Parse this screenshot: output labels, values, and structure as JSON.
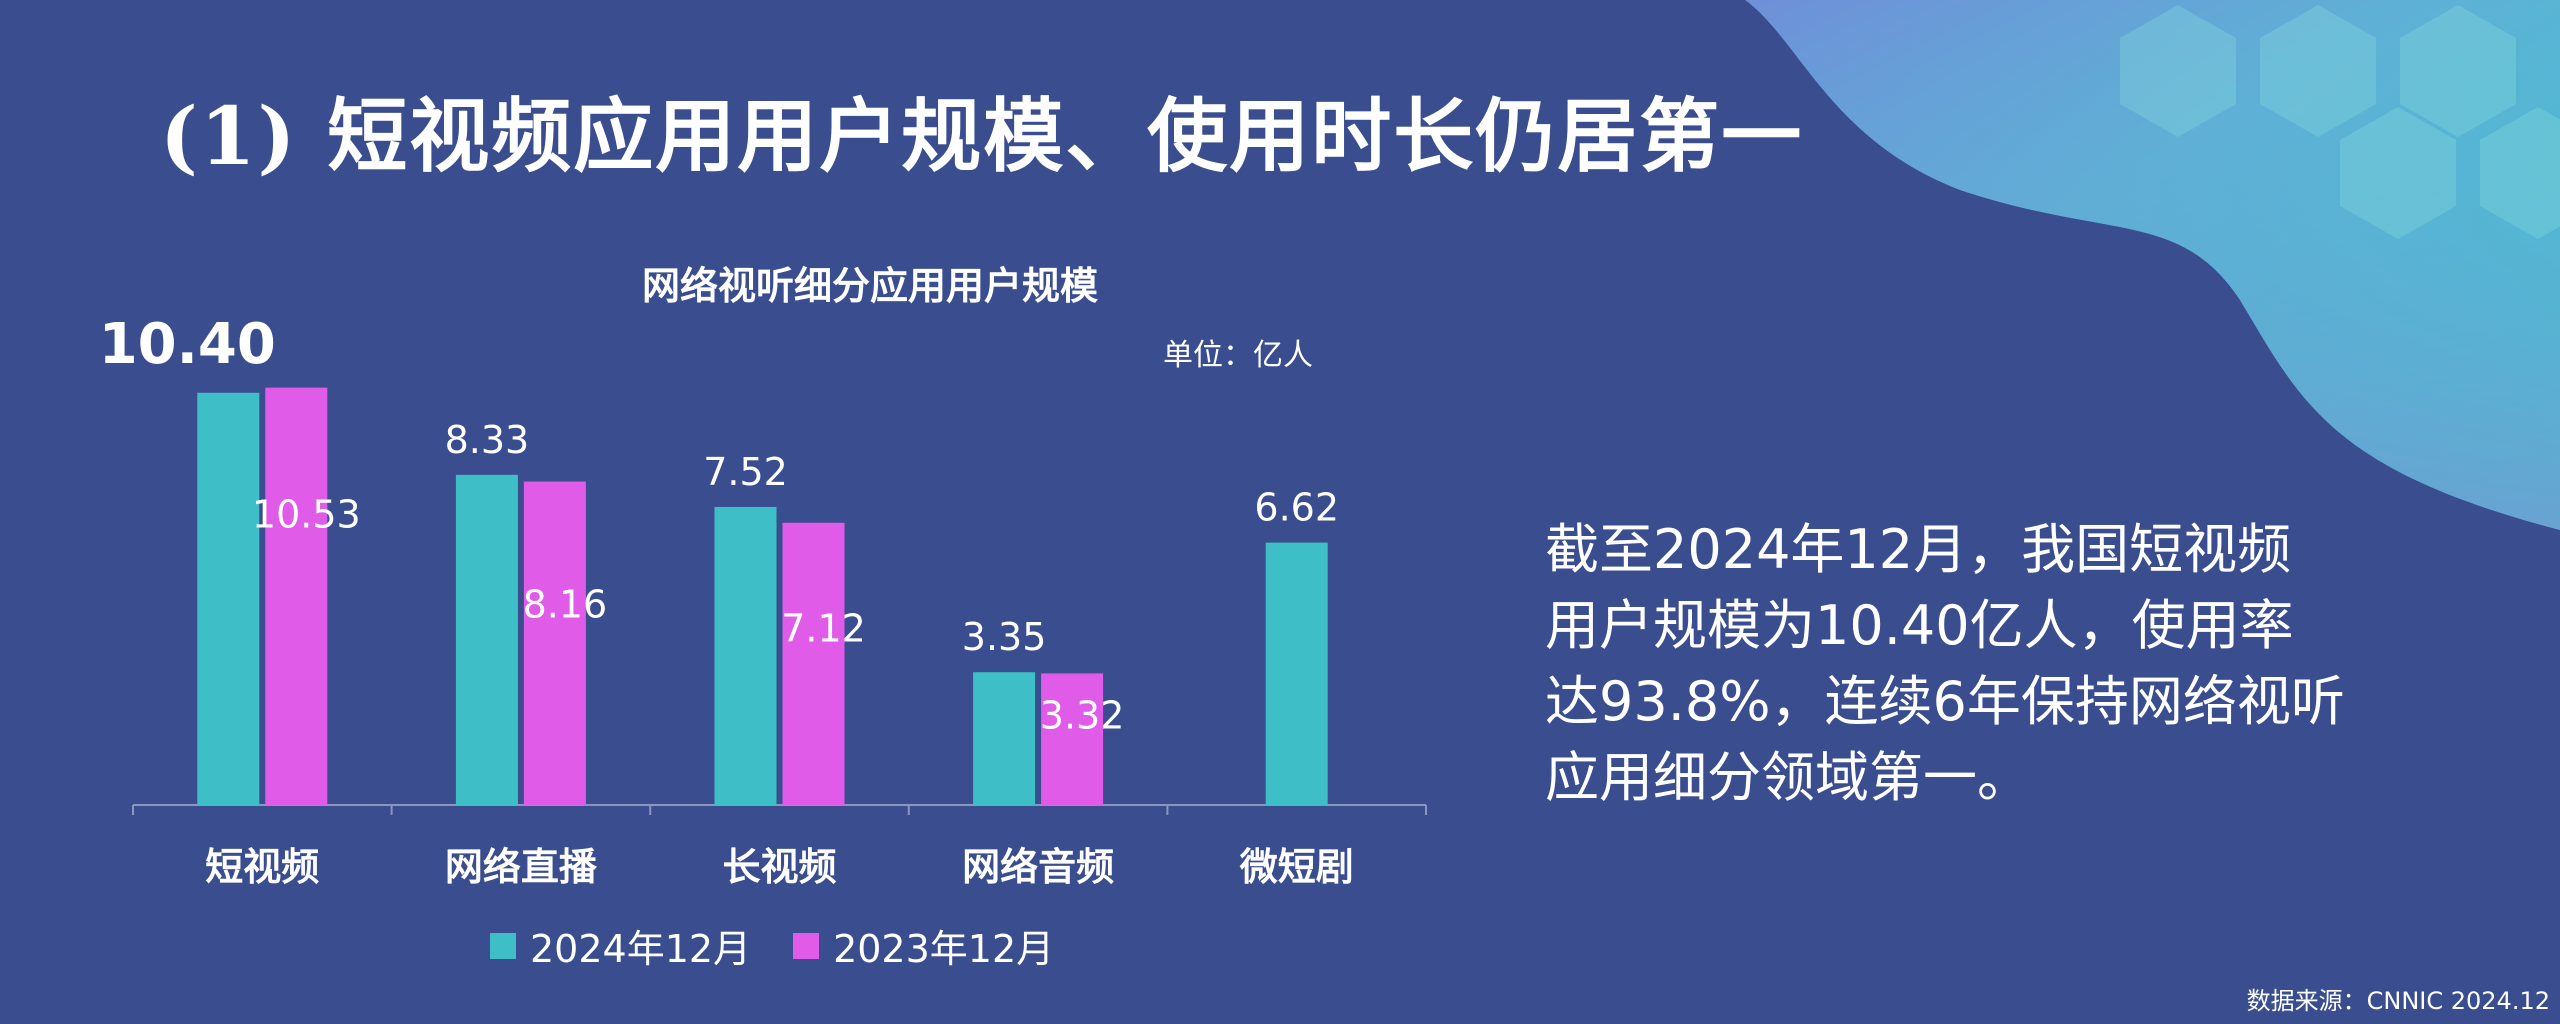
{
  "page": {
    "title": "(1) 短视频应用用户规模、使用时长仍居第一",
    "summary": "截至2024年12月，我国短视频用户规模为10.40亿人，使用率达93.8%，连续6年保持网络视听应用细分领域第一。",
    "source": "数据来源：CNNIC 2024.12"
  },
  "chart_data": {
    "type": "bar",
    "title": "网络视听细分应用用户规模",
    "unit_label": "单位：亿人",
    "categories": [
      "短视频",
      "网络直播",
      "长视频",
      "网络音频",
      "微短剧"
    ],
    "series": [
      {
        "name": "2024年12月",
        "values": [
          10.4,
          8.33,
          7.52,
          3.35,
          6.62
        ],
        "color": "#3ebfc7"
      },
      {
        "name": "2023年12月",
        "values": [
          10.53,
          8.16,
          7.12,
          3.32,
          null
        ],
        "color": "#e05ce8"
      }
    ],
    "value_labels": {
      "2024年12月": [
        "10.40",
        "8.33",
        "7.52",
        "3.35",
        "6.62"
      ],
      "2023年12月": [
        "10.53",
        "8.16",
        "7.12",
        "3.32",
        ""
      ]
    },
    "ylim": [
      0,
      11
    ],
    "grid": false,
    "legend": "bottom",
    "xlabel": "",
    "ylabel": ""
  },
  "colors": {
    "background": "#3a4d8f",
    "series_2024": "#3ebfc7",
    "series_2023": "#e05ce8",
    "axis": "#8a96c0",
    "text": "#ffffff"
  }
}
